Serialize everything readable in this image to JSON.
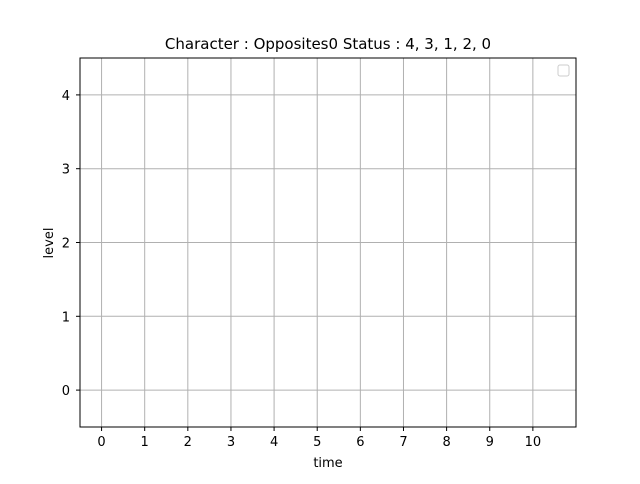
{
  "chart_data": {
    "type": "line",
    "title": "Character : Opposites0 Status : 4, 3, 1, 2, 0",
    "xlabel": "time",
    "ylabel": "level",
    "x_ticks": [
      0,
      1,
      2,
      3,
      4,
      5,
      6,
      7,
      8,
      9,
      10
    ],
    "y_ticks": [
      0,
      1,
      2,
      3,
      4
    ],
    "xlim": [
      -0.5,
      11
    ],
    "ylim": [
      -0.5,
      4.5
    ],
    "grid": true,
    "legend": {
      "placement": "upper-right",
      "entries": []
    },
    "series": []
  },
  "colors": {
    "grid": "#b0b0b0",
    "axes": "#000000",
    "background": "#ffffff"
  }
}
